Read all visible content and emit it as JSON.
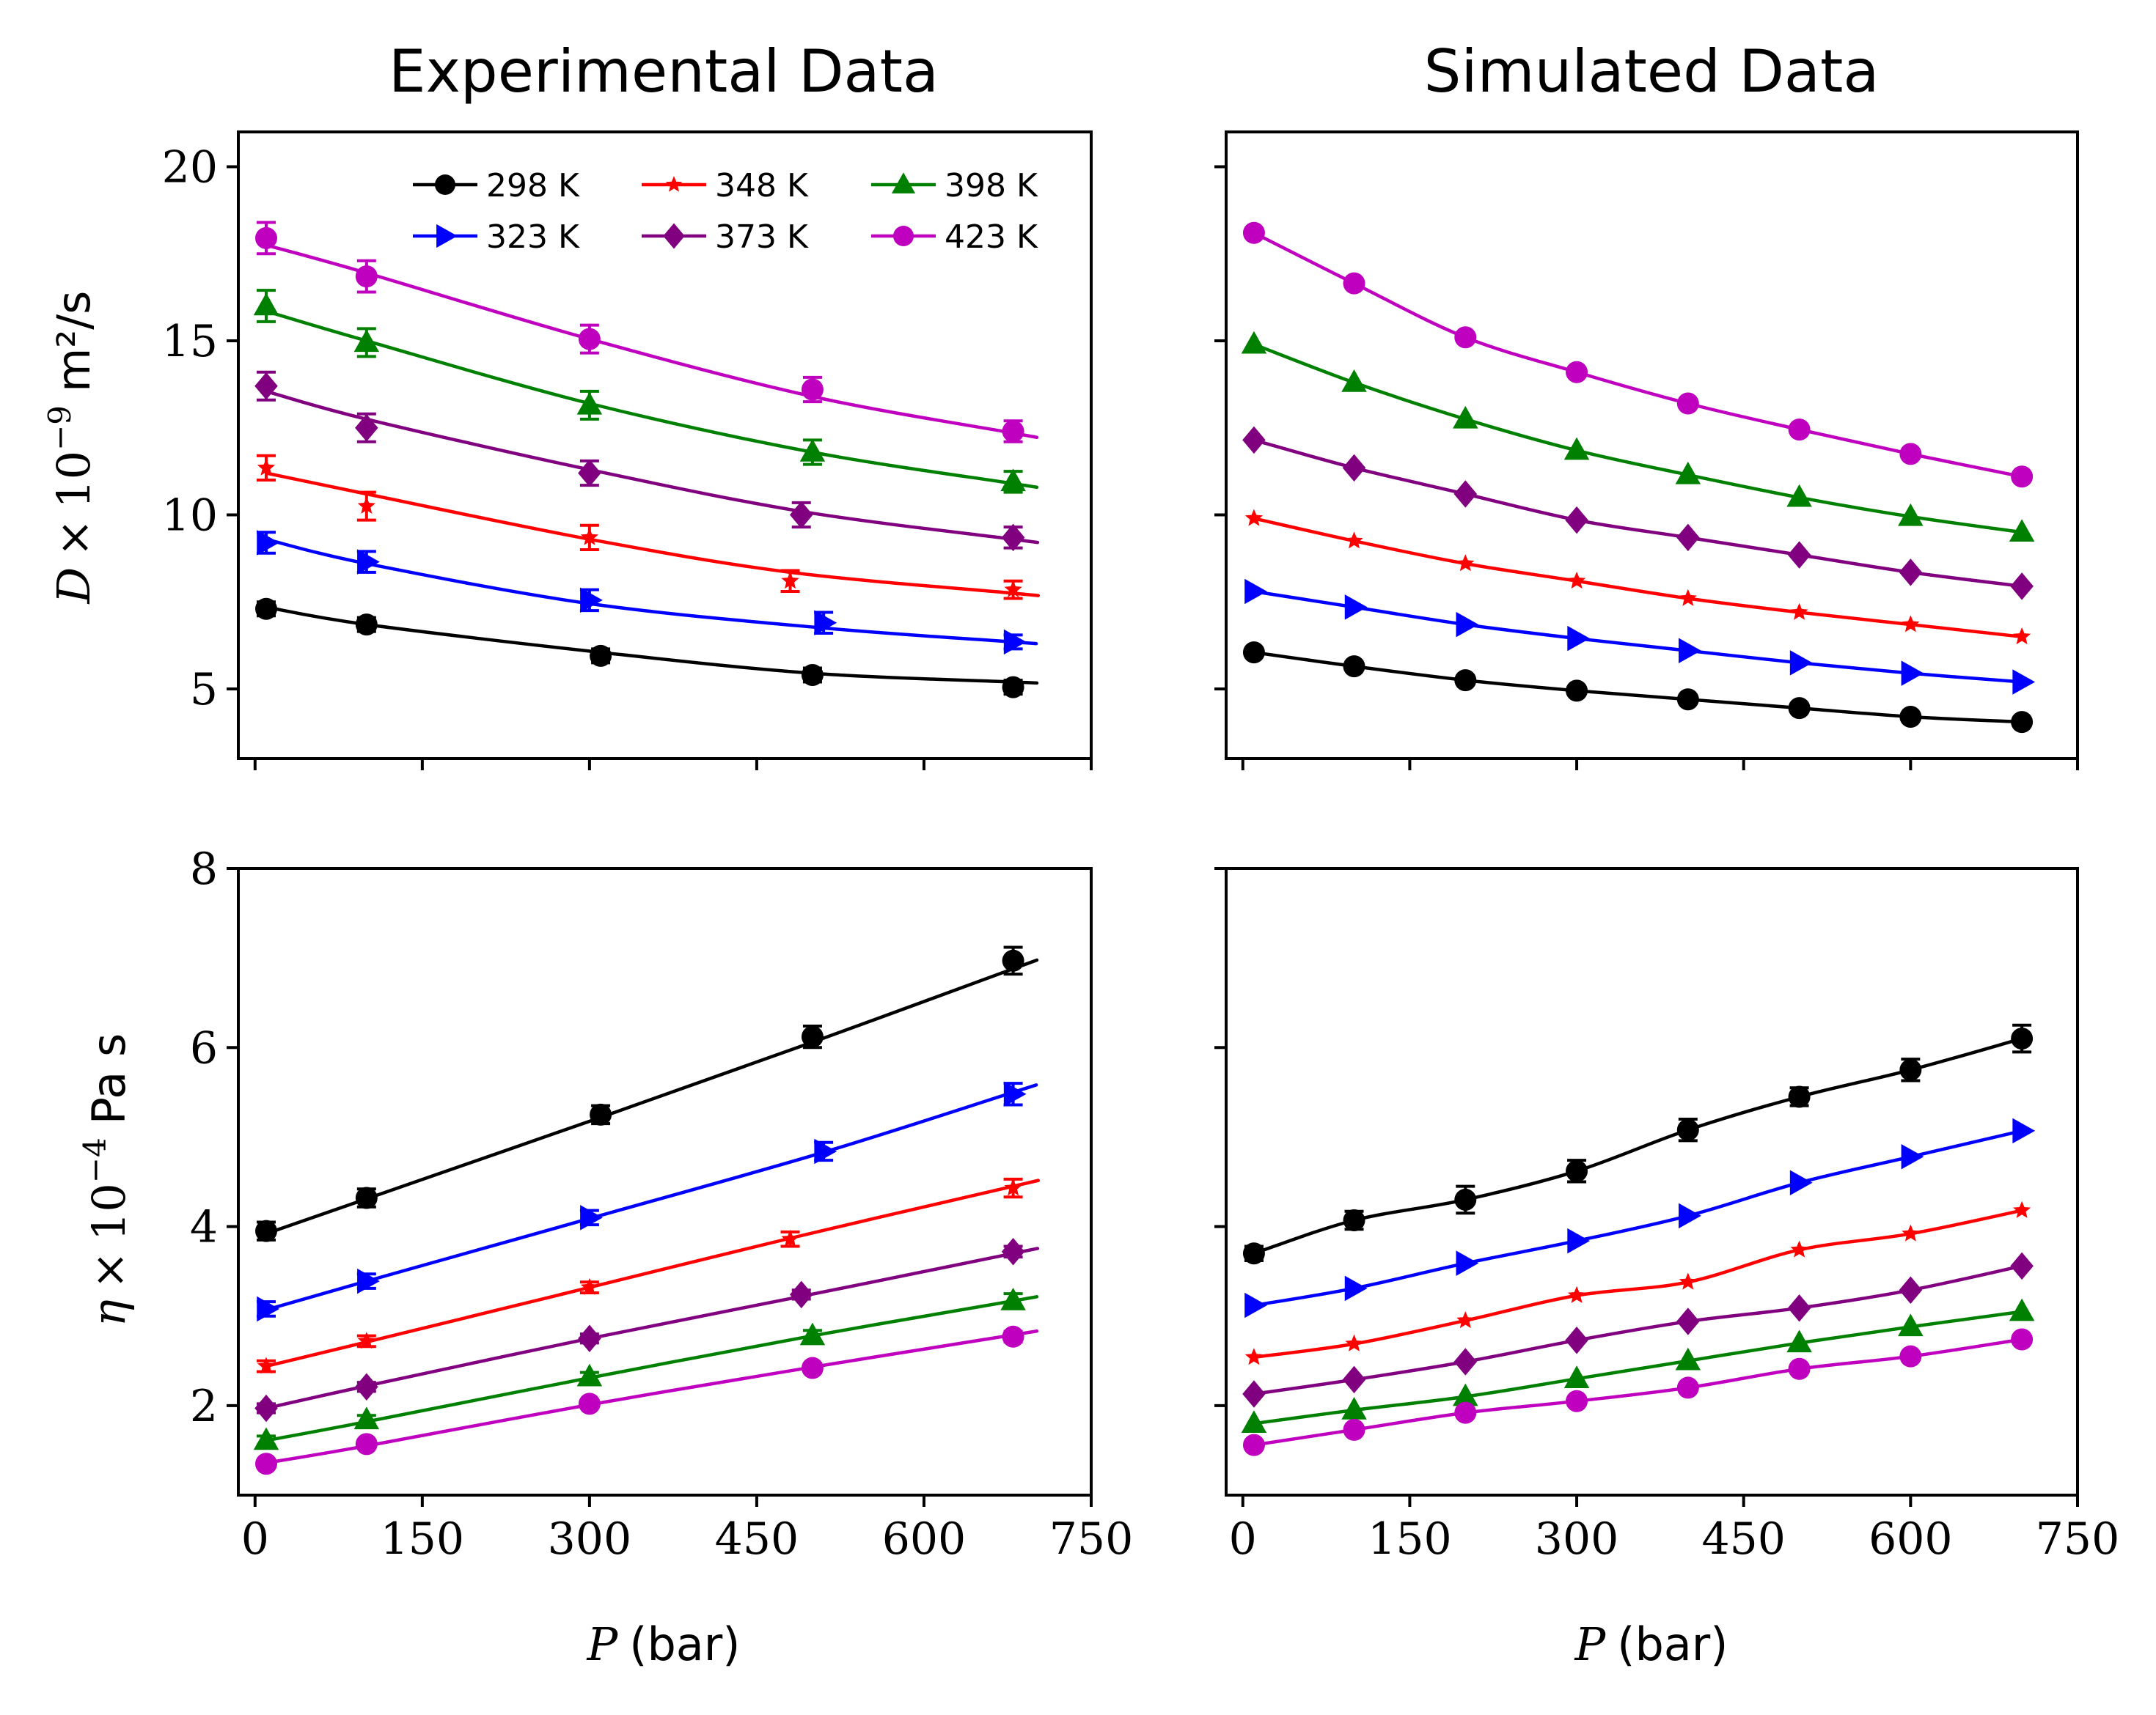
{
  "figure": {
    "titles": [
      "Experimental Data",
      "Simulated Data"
    ],
    "xlabel": {
      "symbol": "P",
      "unit": "(bar)"
    },
    "ylabel_top": {
      "symbol": "D",
      "times": "×",
      "base": "10",
      "exp": "−9",
      "unit": "m²/s"
    },
    "ylabel_bottom": {
      "symbol": "η",
      "times": "×",
      "base": "10",
      "exp": "−4",
      "unit": "Pa s"
    }
  },
  "legend": [
    {
      "label": "298 K",
      "color": "#000000",
      "marker": "circle"
    },
    {
      "label": "323 K",
      "color": "#0000ff",
      "marker": "triangle-right"
    },
    {
      "label": "348 K",
      "color": "#ff0000",
      "marker": "star"
    },
    {
      "label": "373 K",
      "color": "#800080",
      "marker": "diamond"
    },
    {
      "label": "398 K",
      "color": "#008000",
      "marker": "triangle-up"
    },
    {
      "label": "423 K",
      "color": "#bf00bf",
      "marker": "circle"
    }
  ],
  "chart_data": [
    {
      "type": "line",
      "panel": "top-left",
      "title": "Experimental Data",
      "xlabel": "P (bar)",
      "ylabel": "D × 10^-9 m²/s",
      "xlim": [
        -15,
        750
      ],
      "ylim": [
        3,
        21
      ],
      "xticks": [
        0,
        150,
        300,
        450,
        600,
        750
      ],
      "yticks": [
        5,
        10,
        15,
        20
      ],
      "legend_position": "top-right",
      "series": [
        {
          "name": "298 K",
          "x": [
            10,
            100,
            310,
            500,
            680
          ],
          "y": [
            7.3,
            6.85,
            5.95,
            5.4,
            5.05
          ],
          "err": [
            0.2,
            0.2,
            0.2,
            0.2,
            0.2
          ],
          "fit": [
            7.35,
            6.85,
            6.05,
            5.45,
            5.2
          ]
        },
        {
          "name": "323 K",
          "x": [
            10,
            100,
            300,
            510,
            680
          ],
          "y": [
            9.2,
            8.65,
            7.55,
            6.9,
            6.35
          ],
          "err": [
            0.3,
            0.3,
            0.3,
            0.3,
            0.2
          ],
          "fit": [
            9.3,
            8.6,
            7.45,
            6.75,
            6.35
          ]
        },
        {
          "name": "348 K",
          "x": [
            10,
            100,
            300,
            480,
            680
          ],
          "y": [
            11.35,
            10.25,
            9.35,
            8.1,
            7.85
          ],
          "err": [
            0.35,
            0.4,
            0.35,
            0.3,
            0.25
          ],
          "fit": [
            11.2,
            10.6,
            9.3,
            8.35,
            7.75
          ]
        },
        {
          "name": "373 K",
          "x": [
            10,
            100,
            300,
            490,
            680
          ],
          "y": [
            13.7,
            12.5,
            11.2,
            10.0,
            9.35
          ],
          "err": [
            0.4,
            0.4,
            0.35,
            0.35,
            0.3
          ],
          "fit": [
            13.55,
            12.75,
            11.3,
            10.1,
            9.3
          ]
        },
        {
          "name": "398 K",
          "x": [
            10,
            100,
            300,
            500,
            680
          ],
          "y": [
            16.0,
            14.95,
            13.15,
            11.8,
            10.95
          ],
          "err": [
            0.45,
            0.4,
            0.4,
            0.35,
            0.3
          ],
          "fit": [
            15.85,
            15.0,
            13.2,
            11.8,
            10.9
          ]
        },
        {
          "name": "423 K",
          "x": [
            10,
            100,
            300,
            500,
            680
          ],
          "y": [
            17.95,
            16.85,
            15.05,
            13.6,
            12.4
          ],
          "err": [
            0.45,
            0.45,
            0.4,
            0.35,
            0.3
          ],
          "fit": [
            17.75,
            16.95,
            15.05,
            13.4,
            12.35
          ]
        }
      ]
    },
    {
      "type": "line",
      "panel": "top-right",
      "title": "Simulated Data",
      "xlabel": "",
      "ylabel": "",
      "xlim": [
        -15,
        750
      ],
      "ylim": [
        3,
        21
      ],
      "xticks": [
        0,
        150,
        300,
        450,
        600,
        750
      ],
      "yticks": [
        5,
        10,
        15,
        20
      ],
      "series": [
        {
          "name": "298 K",
          "x": [
            10,
            100,
            200,
            300,
            400,
            500,
            600,
            700
          ],
          "y": [
            6.05,
            5.65,
            5.25,
            4.95,
            4.7,
            4.45,
            4.2,
            4.05
          ]
        },
        {
          "name": "323 K",
          "x": [
            10,
            100,
            200,
            300,
            400,
            500,
            600,
            700
          ],
          "y": [
            7.8,
            7.35,
            6.85,
            6.45,
            6.1,
            5.75,
            5.45,
            5.2
          ]
        },
        {
          "name": "348 K",
          "x": [
            10,
            100,
            200,
            300,
            400,
            500,
            600,
            700
          ],
          "y": [
            9.9,
            9.25,
            8.6,
            8.1,
            7.6,
            7.2,
            6.85,
            6.5
          ]
        },
        {
          "name": "373 K",
          "x": [
            10,
            100,
            200,
            300,
            400,
            500,
            600,
            700
          ],
          "y": [
            12.15,
            11.35,
            10.6,
            9.85,
            9.35,
            8.85,
            8.35,
            7.95
          ]
        },
        {
          "name": "398 K",
          "x": [
            10,
            100,
            200,
            300,
            400,
            500,
            600,
            700
          ],
          "y": [
            14.9,
            13.8,
            12.75,
            11.85,
            11.15,
            10.5,
            9.95,
            9.5
          ]
        },
        {
          "name": "423 K",
          "x": [
            10,
            100,
            200,
            300,
            400,
            500,
            600,
            700
          ],
          "y": [
            18.1,
            16.65,
            15.1,
            14.1,
            13.2,
            12.45,
            11.75,
            11.1
          ]
        }
      ]
    },
    {
      "type": "line",
      "panel": "bottom-left",
      "title": "",
      "xlabel": "P (bar)",
      "ylabel": "η × 10^-4 Pa s",
      "xlim": [
        -15,
        750
      ],
      "ylim": [
        1,
        8
      ],
      "xticks": [
        0,
        150,
        300,
        450,
        600,
        750
      ],
      "yticks": [
        2,
        4,
        6,
        8
      ],
      "series": [
        {
          "name": "298 K",
          "x": [
            10,
            100,
            310,
            500,
            680
          ],
          "y": [
            3.95,
            4.32,
            5.25,
            6.12,
            6.97
          ],
          "err": [
            0.1,
            0.1,
            0.1,
            0.12,
            0.15
          ],
          "fit": [
            3.92,
            4.31,
            5.22,
            6.06,
            6.88
          ]
        },
        {
          "name": "323 K",
          "x": [
            10,
            100,
            300,
            510,
            680
          ],
          "y": [
            3.08,
            3.39,
            4.1,
            4.84,
            5.48
          ],
          "err": [
            0.08,
            0.08,
            0.08,
            0.1,
            0.12
          ],
          "fit": [
            3.07,
            3.39,
            4.09,
            4.83,
            5.5
          ]
        },
        {
          "name": "348 K",
          "x": [
            10,
            100,
            300,
            480,
            680
          ],
          "y": [
            2.44,
            2.72,
            3.32,
            3.86,
            4.43
          ],
          "err": [
            0.06,
            0.06,
            0.06,
            0.08,
            0.1
          ],
          "fit": [
            2.44,
            2.71,
            3.32,
            3.87,
            4.45
          ]
        },
        {
          "name": "373 K",
          "x": [
            10,
            100,
            300,
            490,
            680
          ],
          "y": [
            1.97,
            2.21,
            2.75,
            3.24,
            3.72
          ],
          "err": [
            0.05,
            0.05,
            0.05,
            0.05,
            0.06
          ],
          "fit": [
            1.97,
            2.22,
            2.75,
            3.22,
            3.7
          ]
        },
        {
          "name": "398 K",
          "x": [
            10,
            100,
            300,
            500,
            680
          ],
          "y": [
            1.61,
            1.84,
            2.32,
            2.78,
            3.17
          ],
          "err": [
            0.05,
            0.05,
            0.05,
            0.06,
            0.08
          ],
          "fit": [
            1.61,
            1.82,
            2.31,
            2.78,
            3.17
          ]
        },
        {
          "name": "423 K",
          "x": [
            10,
            100,
            300,
            500,
            680
          ],
          "y": [
            1.35,
            1.57,
            2.02,
            2.42,
            2.77
          ],
          "err": [
            0.03,
            0.04,
            0.04,
            0.05,
            0.06
          ],
          "fit": [
            1.36,
            1.55,
            2.01,
            2.43,
            2.79
          ]
        }
      ]
    },
    {
      "type": "line",
      "panel": "bottom-right",
      "title": "",
      "xlabel": "P (bar)",
      "ylabel": "",
      "xlim": [
        -15,
        750
      ],
      "ylim": [
        1,
        8
      ],
      "xticks": [
        0,
        150,
        300,
        450,
        600,
        750
      ],
      "yticks": [
        2,
        4,
        6,
        8
      ],
      "series": [
        {
          "name": "298 K",
          "x": [
            10,
            100,
            200,
            300,
            400,
            500,
            600,
            700
          ],
          "y": [
            3.7,
            4.07,
            4.3,
            4.62,
            5.08,
            5.45,
            5.75,
            6.1
          ],
          "err": [
            0.08,
            0.1,
            0.15,
            0.12,
            0.12,
            0.1,
            0.12,
            0.15
          ]
        },
        {
          "name": "323 K",
          "x": [
            10,
            100,
            200,
            300,
            400,
            500,
            600,
            700
          ],
          "y": [
            3.12,
            3.31,
            3.59,
            3.84,
            4.12,
            4.49,
            4.78,
            5.07
          ]
        },
        {
          "name": "348 K",
          "x": [
            10,
            100,
            200,
            300,
            400,
            500,
            600,
            700
          ],
          "y": [
            2.54,
            2.69,
            2.95,
            3.23,
            3.38,
            3.74,
            3.92,
            4.18
          ]
        },
        {
          "name": "373 K",
          "x": [
            10,
            100,
            200,
            300,
            400,
            500,
            600,
            700
          ],
          "y": [
            2.13,
            2.29,
            2.49,
            2.73,
            2.94,
            3.09,
            3.29,
            3.56
          ]
        },
        {
          "name": "398 K",
          "x": [
            10,
            100,
            200,
            300,
            400,
            500,
            600,
            700
          ],
          "y": [
            1.8,
            1.95,
            2.1,
            2.3,
            2.5,
            2.7,
            2.88,
            3.05
          ]
        },
        {
          "name": "423 K",
          "x": [
            10,
            100,
            200,
            300,
            400,
            500,
            600,
            700
          ],
          "y": [
            1.56,
            1.73,
            1.92,
            2.05,
            2.2,
            2.41,
            2.55,
            2.74
          ]
        }
      ]
    }
  ]
}
